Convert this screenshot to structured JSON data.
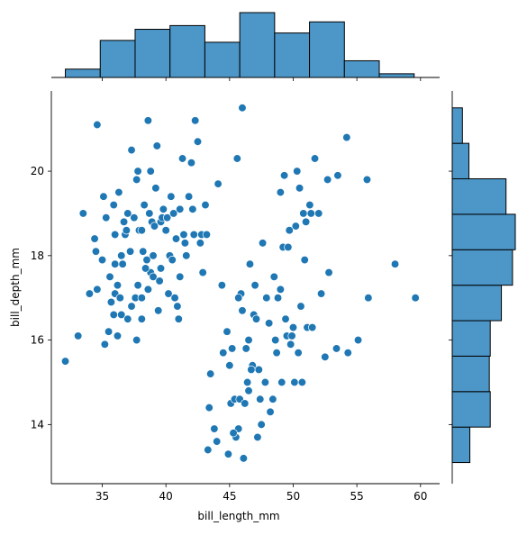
{
  "chart_data": {
    "type": "scatter",
    "xlabel": "bill_length_mm",
    "ylabel": "bill_depth_mm",
    "xlim": [
      31,
      61.5
    ],
    "ylim": [
      12.6,
      21.9
    ],
    "x_ticks": [
      35,
      40,
      45,
      50,
      55,
      60
    ],
    "y_ticks": [
      14,
      16,
      18,
      20
    ],
    "grid": false,
    "point_color": "#1f77b4",
    "bar_color": "#4c96c8",
    "points": [
      [
        32.1,
        15.5
      ],
      [
        33.1,
        16.1
      ],
      [
        33.5,
        19.0
      ],
      [
        34.0,
        17.1
      ],
      [
        34.4,
        18.4
      ],
      [
        34.5,
        18.1
      ],
      [
        34.6,
        17.2
      ],
      [
        34.6,
        21.1
      ],
      [
        35.0,
        17.9
      ],
      [
        35.1,
        19.4
      ],
      [
        35.2,
        15.9
      ],
      [
        35.3,
        18.9
      ],
      [
        35.5,
        16.2
      ],
      [
        35.6,
        17.5
      ],
      [
        35.7,
        16.9
      ],
      [
        35.9,
        16.6
      ],
      [
        35.9,
        19.2
      ],
      [
        36.0,
        17.8
      ],
      [
        36.0,
        17.1
      ],
      [
        36.2,
        16.1
      ],
      [
        36.2,
        17.3
      ],
      [
        36.3,
        19.5
      ],
      [
        36.4,
        17.0
      ],
      [
        36.5,
        16.6
      ],
      [
        36.5,
        18.0
      ],
      [
        36.6,
        17.8
      ],
      [
        36.7,
        18.8
      ],
      [
        36.8,
        18.5
      ],
      [
        36.9,
        18.6
      ],
      [
        37.0,
        16.5
      ],
      [
        37.2,
        18.1
      ],
      [
        37.3,
        16.8
      ],
      [
        37.3,
        20.5
      ],
      [
        37.5,
        18.9
      ],
      [
        37.6,
        17.0
      ],
      [
        37.7,
        16.0
      ],
      [
        37.7,
        19.8
      ],
      [
        37.8,
        17.3
      ],
      [
        37.8,
        20.0
      ],
      [
        37.9,
        18.6
      ],
      [
        38.1,
        17.0
      ],
      [
        38.1,
        18.6
      ],
      [
        38.1,
        16.5
      ],
      [
        38.2,
        18.1
      ],
      [
        38.3,
        19.2
      ],
      [
        38.5,
        17.9
      ],
      [
        38.6,
        17.2
      ],
      [
        38.6,
        21.2
      ],
      [
        38.7,
        19.0
      ],
      [
        38.8,
        17.6
      ],
      [
        38.8,
        20.0
      ],
      [
        38.9,
        18.8
      ],
      [
        39.0,
        17.5
      ],
      [
        39.1,
        18.7
      ],
      [
        39.2,
        19.6
      ],
      [
        39.3,
        20.6
      ],
      [
        39.5,
        17.4
      ],
      [
        39.6,
        17.7
      ],
      [
        39.6,
        18.8
      ],
      [
        39.7,
        18.9
      ],
      [
        39.8,
        19.1
      ],
      [
        40.1,
        18.9
      ],
      [
        40.2,
        17.1
      ],
      [
        40.3,
        18.0
      ],
      [
        40.5,
        17.9
      ],
      [
        40.6,
        19.0
      ],
      [
        40.7,
        17.0
      ],
      [
        40.8,
        18.4
      ],
      [
        40.9,
        16.8
      ],
      [
        41.1,
        17.5
      ],
      [
        41.1,
        19.1
      ],
      [
        41.3,
        20.3
      ],
      [
        41.4,
        18.5
      ],
      [
        41.6,
        18.0
      ],
      [
        41.8,
        19.4
      ],
      [
        42.0,
        20.2
      ],
      [
        42.2,
        18.5
      ],
      [
        42.3,
        21.2
      ],
      [
        42.5,
        20.7
      ],
      [
        42.7,
        18.3
      ],
      [
        42.8,
        18.5
      ],
      [
        42.9,
        17.6
      ],
      [
        43.2,
        18.5
      ],
      [
        43.3,
        13.4
      ],
      [
        43.5,
        15.2
      ],
      [
        43.8,
        13.9
      ],
      [
        44.1,
        19.7
      ],
      [
        44.4,
        17.3
      ],
      [
        44.5,
        15.7
      ],
      [
        44.9,
        13.3
      ],
      [
        45.1,
        14.5
      ],
      [
        45.2,
        15.8
      ],
      [
        45.4,
        14.6
      ],
      [
        45.5,
        13.7
      ],
      [
        45.6,
        20.3
      ],
      [
        45.7,
        13.9
      ],
      [
        45.8,
        14.6
      ],
      [
        46.0,
        21.5
      ],
      [
        46.1,
        13.2
      ],
      [
        46.2,
        14.5
      ],
      [
        46.4,
        15.0
      ],
      [
        46.5,
        14.8
      ],
      [
        46.6,
        17.8
      ],
      [
        46.8,
        15.4
      ],
      [
        47.0,
        17.3
      ],
      [
        47.2,
        13.7
      ],
      [
        47.3,
        15.3
      ],
      [
        47.5,
        14.0
      ],
      [
        47.6,
        18.3
      ],
      [
        47.8,
        15.0
      ],
      [
        48.1,
        16.4
      ],
      [
        48.2,
        14.3
      ],
      [
        48.4,
        14.6
      ],
      [
        48.5,
        17.5
      ],
      [
        48.7,
        15.7
      ],
      [
        49.0,
        19.5
      ],
      [
        49.1,
        15.0
      ],
      [
        49.2,
        18.2
      ],
      [
        49.3,
        19.9
      ],
      [
        49.5,
        16.1
      ],
      [
        49.6,
        18.2
      ],
      [
        49.8,
        15.9
      ],
      [
        50.0,
        16.3
      ],
      [
        50.1,
        15.0
      ],
      [
        50.2,
        18.7
      ],
      [
        50.4,
        15.7
      ],
      [
        50.5,
        19.6
      ],
      [
        50.7,
        15.0
      ],
      [
        50.8,
        19.0
      ],
      [
        51.0,
        18.8
      ],
      [
        51.1,
        16.3
      ],
      [
        51.3,
        19.2
      ],
      [
        51.5,
        16.3
      ],
      [
        51.7,
        20.3
      ],
      [
        52.0,
        19.0
      ],
      [
        52.2,
        17.1
      ],
      [
        52.5,
        15.6
      ],
      [
        52.7,
        19.8
      ],
      [
        53.4,
        15.8
      ],
      [
        53.5,
        19.9
      ],
      [
        54.2,
        20.8
      ],
      [
        54.3,
        15.7
      ],
      [
        55.1,
        16.0
      ],
      [
        55.8,
        19.8
      ],
      [
        55.9,
        17.0
      ],
      [
        58.0,
        17.8
      ],
      [
        59.6,
        17.0
      ],
      [
        46.9,
        16.6
      ],
      [
        45.3,
        13.8
      ],
      [
        46.7,
        15.3
      ],
      [
        48.6,
        16.0
      ],
      [
        43.4,
        14.4
      ],
      [
        45.0,
        15.4
      ],
      [
        47.4,
        14.6
      ],
      [
        49.9,
        16.1
      ],
      [
        46.3,
        15.8
      ],
      [
        44.0,
        13.6
      ],
      [
        50.3,
        20.0
      ],
      [
        49.7,
        18.6
      ],
      [
        51.4,
        19.0
      ],
      [
        40.0,
        18.6
      ],
      [
        39.0,
        18.0
      ],
      [
        37.0,
        19.0
      ],
      [
        36.0,
        18.5
      ],
      [
        38.4,
        17.7
      ],
      [
        41.5,
        18.3
      ],
      [
        40.4,
        19.4
      ],
      [
        39.4,
        16.7
      ],
      [
        42.1,
        19.1
      ],
      [
        43.1,
        19.2
      ],
      [
        41.0,
        16.5
      ],
      [
        45.9,
        17.1
      ],
      [
        46.5,
        16.0
      ],
      [
        47.1,
        16.5
      ],
      [
        49.4,
        16.5
      ],
      [
        50.6,
        16.8
      ],
      [
        47.9,
        17.0
      ],
      [
        48.8,
        17.0
      ],
      [
        44.8,
        16.2
      ],
      [
        46.0,
        16.7
      ],
      [
        45.7,
        17.0
      ],
      [
        50.9,
        17.9
      ],
      [
        52.8,
        17.6
      ],
      [
        49.0,
        17.2
      ]
    ],
    "hist_x": {
      "bin_edges": [
        32.1,
        34.84,
        37.58,
        40.32,
        43.06,
        45.8,
        48.54,
        51.28,
        54.02,
        56.76,
        59.5
      ],
      "counts": [
        9,
        40,
        52,
        56,
        38,
        70,
        48,
        60,
        18,
        4
      ]
    },
    "hist_y": {
      "bin_edges": [
        13.1,
        13.94,
        14.78,
        15.62,
        16.46,
        17.3,
        18.14,
        18.98,
        19.82,
        20.66,
        21.5
      ],
      "counts": [
        19,
        41,
        40,
        41,
        53,
        65,
        68,
        58,
        18,
        11
      ]
    }
  }
}
